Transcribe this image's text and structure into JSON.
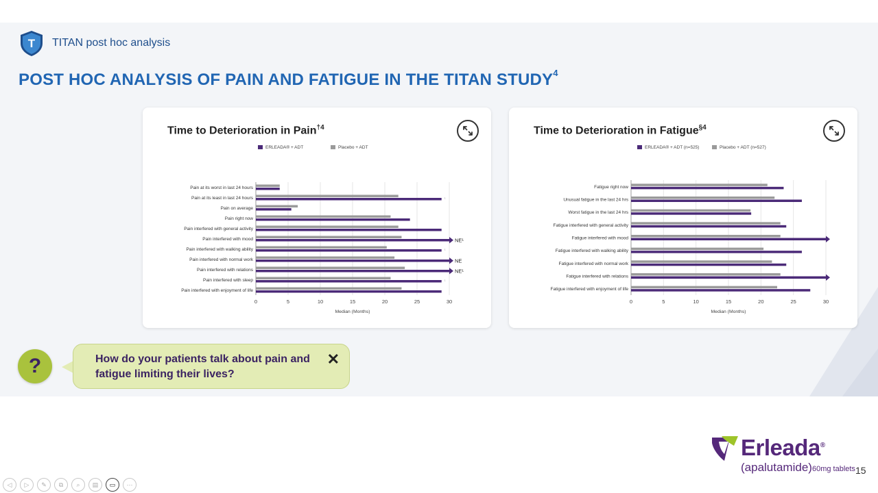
{
  "header": {
    "brand_text": "TITAN post hoc analysis",
    "shield_letter": "T"
  },
  "page": {
    "title": "POST HOC ANALYSIS OF PAIN AND FATIGUE IN THE TITAN STUDY",
    "title_sup": "4",
    "page_number": "15"
  },
  "colors": {
    "erleada": "#4b2a78",
    "placebo": "#9a9a9a",
    "title_blue": "#2166b3"
  },
  "chart_data": [
    {
      "type": "bar",
      "orientation": "horizontal",
      "title": "Time to Deterioration in Pain",
      "title_sup": "†4",
      "legend": [
        "ERLEADA® + ADT",
        "Placebo + ADT"
      ],
      "categories": [
        "Pain at its worst in last 24 hours",
        "Pain at its least in last 24 hours",
        "Pain on average",
        "Pain right now",
        "Pain interfered with general activity",
        "Pain interfered with mood",
        "Pain interfered with walking ability",
        "Pain interfered with normal work",
        "Pain interfered with relations",
        "Pain interfered with sleep",
        "Pain interfered with enjoyment of life"
      ],
      "series": [
        {
          "name": "ERLEADA® + ADT",
          "values": [
            3.7,
            28.8,
            5.5,
            23.9,
            28.8,
            30,
            28.8,
            30,
            30,
            28.8,
            28.8
          ]
        },
        {
          "name": "Placebo + ADT",
          "values": [
            3.7,
            22.1,
            6.5,
            20.9,
            22.1,
            22.6,
            20.3,
            21.5,
            23.1,
            20.9,
            22.6
          ]
        }
      ],
      "ne_rows": [
        false,
        false,
        false,
        false,
        false,
        true,
        false,
        true,
        true,
        false,
        false
      ],
      "ne_labels": [
        "",
        "",
        "",
        "",
        "",
        "NE¹",
        "",
        "NE",
        "NE¹",
        "",
        ""
      ],
      "note_rows": [
        false,
        true,
        false,
        false,
        false,
        false,
        true,
        false,
        false,
        true,
        false
      ],
      "note_label": "¹",
      "xlabel": "Median (Months)",
      "xticks": [
        0,
        5,
        10,
        15,
        20,
        25,
        30
      ],
      "xlim": [
        0,
        30
      ]
    },
    {
      "type": "bar",
      "orientation": "horizontal",
      "title": "Time to Deterioration in Fatigue",
      "title_sup": "§4",
      "legend": [
        "ERLEADA® + ADT (n=525)",
        "Placebo + ADT (n=527)"
      ],
      "categories": [
        "Fatigue right now",
        "Unusual fatigue in the last 24 hrs",
        "Worst fatigue in the last 24 hrs",
        "Fatigue interfered with general activity",
        "Fatigue interfered with mood",
        "Fatigue interfered with walking ability",
        "Fatigue interfered with normal work",
        "Fatigue interfered with relations",
        "Fatigue interfered with enjoyment of life"
      ],
      "series": [
        {
          "name": "ERLEADA® + ADT (n=525)",
          "values": [
            23.5,
            26.3,
            18.5,
            23.9,
            30.5,
            26.3,
            23.9,
            30.5,
            27.6
          ]
        },
        {
          "name": "Placebo + ADT (n=527)",
          "values": [
            21.0,
            22.1,
            18.4,
            23.0,
            23.0,
            20.4,
            21.7,
            23.0,
            22.5
          ]
        }
      ],
      "ne_rows": [
        false,
        false,
        false,
        false,
        true,
        false,
        false,
        true,
        false
      ],
      "xlabel": "Median (Months)",
      "xticks": [
        0,
        5,
        10,
        15,
        20,
        25,
        30
      ],
      "xlim": [
        0,
        30
      ]
    }
  ],
  "callout": {
    "icon": "?",
    "text": "How do your patients talk about pain and fatigue limiting their lives?",
    "close_symbol": "✕"
  },
  "logo": {
    "name": "Erleada",
    "trademark": "®",
    "sub_main": "(apalutamide)",
    "sub_dose": "60mg tablets"
  },
  "toolbar": {
    "items": [
      {
        "name": "prev-icon",
        "glyph": "◁"
      },
      {
        "name": "next-icon",
        "glyph": "▷"
      },
      {
        "name": "pen-icon",
        "glyph": "✎"
      },
      {
        "name": "copy-icon",
        "glyph": "⧉"
      },
      {
        "name": "zoom-icon",
        "glyph": "⌕"
      },
      {
        "name": "subtitles-icon",
        "glyph": "▤"
      },
      {
        "name": "video-icon",
        "glyph": "▭"
      },
      {
        "name": "more-icon",
        "glyph": "⋯"
      }
    ]
  }
}
